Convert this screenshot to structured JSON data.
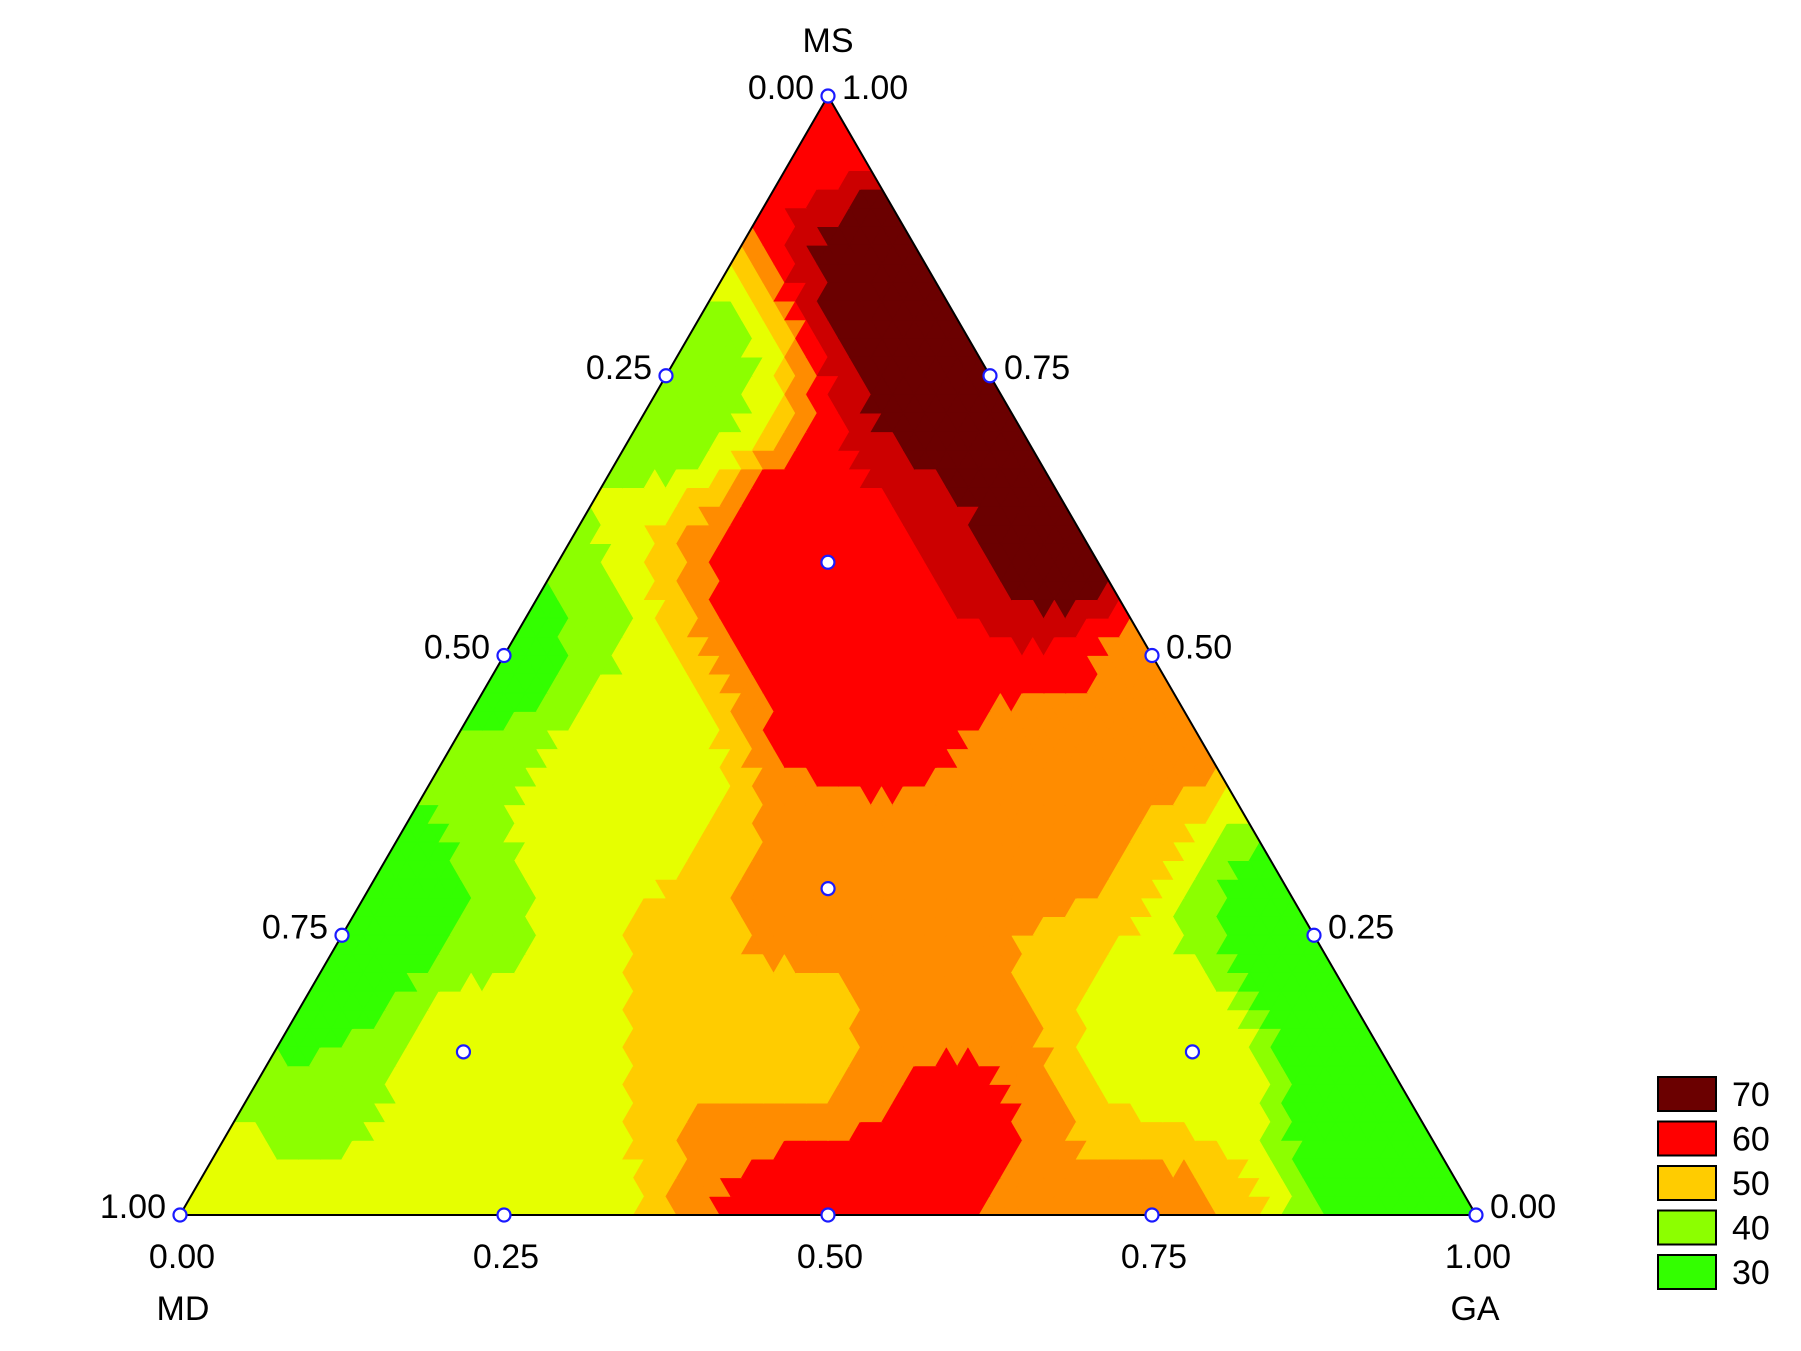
{
  "chart_data": {
    "type": "heatmap",
    "subtype": "ternary-contour",
    "components": {
      "top": "MS",
      "bottom_left": "MD",
      "bottom_right": "GA"
    },
    "left_edge_ticks": [
      "0.00",
      "0.25",
      "0.50",
      "0.75",
      "1.00"
    ],
    "right_edge_ticks": [
      "1.00",
      "0.75",
      "0.50",
      "0.25",
      "0.00"
    ],
    "bottom_edge_ticks": [
      "0.00",
      "0.25",
      "0.50",
      "0.75",
      "1.00"
    ],
    "design_points": [
      {
        "MS": 1.0,
        "GA": 0.0
      },
      {
        "MS": 0.75,
        "GA": 0.0
      },
      {
        "MS": 0.75,
        "GA": 0.25
      },
      {
        "MS": 0.5,
        "GA": 0.0
      },
      {
        "MS": 0.5,
        "GA": 0.5
      },
      {
        "MS": 0.25,
        "GA": 0.0
      },
      {
        "MS": 0.25,
        "GA": 0.75
      },
      {
        "MS": 0.0,
        "GA": 0.0
      },
      {
        "MS": 0.0,
        "GA": 0.25
      },
      {
        "MS": 0.0,
        "GA": 0.5
      },
      {
        "MS": 0.0,
        "GA": 0.75
      },
      {
        "MS": 0.0,
        "GA": 1.0
      },
      {
        "MS": 0.5833,
        "GA": 0.2083
      },
      {
        "MS": 0.2917,
        "GA": 0.3542
      },
      {
        "MS": 0.1458,
        "GA": 0.1458
      },
      {
        "MS": 0.1458,
        "GA": 0.7083
      }
    ],
    "contour_approximation": {
      "description": "response level by composition (fractions of MS and GA, MD = 1 - MS - GA)",
      "samples": [
        {
          "MS": 1.0,
          "GA": 0.0,
          "value": 60
        },
        {
          "MS": 0.75,
          "GA": 0.0,
          "value": 40
        },
        {
          "MS": 0.75,
          "GA": 0.25,
          "value": 72
        },
        {
          "MS": 0.5,
          "GA": 0.0,
          "value": 37
        },
        {
          "MS": 0.5,
          "GA": 0.5,
          "value": 57
        },
        {
          "MS": 0.25,
          "GA": 0.0,
          "value": 33
        },
        {
          "MS": 0.25,
          "GA": 0.75,
          "value": 35
        },
        {
          "MS": 0.0,
          "GA": 0.0,
          "value": 43
        },
        {
          "MS": 0.0,
          "GA": 0.25,
          "value": 44
        },
        {
          "MS": 0.0,
          "GA": 0.5,
          "value": 60
        },
        {
          "MS": 0.0,
          "GA": 0.75,
          "value": 53
        },
        {
          "MS": 0.0,
          "GA": 1.0,
          "value": 35
        },
        {
          "MS": 0.5833,
          "GA": 0.2083,
          "value": 62
        },
        {
          "MS": 0.2917,
          "GA": 0.3542,
          "value": 53
        },
        {
          "MS": 0.1458,
          "GA": 0.1458,
          "value": 43
        },
        {
          "MS": 0.1458,
          "GA": 0.7083,
          "value": 45
        },
        {
          "MS": 0.85,
          "GA": 0.15,
          "value": 72
        },
        {
          "MS": 0.6,
          "GA": 0.4,
          "value": 70
        },
        {
          "MS": 0.45,
          "GA": 0.3,
          "value": 60
        },
        {
          "MS": 0.35,
          "GA": 0.5,
          "value": 53
        },
        {
          "MS": 0.15,
          "GA": 0.4,
          "value": 52
        },
        {
          "MS": 0.08,
          "GA": 0.55,
          "value": 58
        },
        {
          "MS": 0.4,
          "GA": 0.15,
          "value": 45
        },
        {
          "MS": 0.2,
          "GA": 0.8,
          "value": 30
        },
        {
          "MS": 0.1,
          "GA": 0.9,
          "value": 28
        }
      ]
    },
    "legend": {
      "placement": "bottom-right",
      "entries": [
        {
          "label": "70",
          "color": "#6b0000"
        },
        {
          "label": "60",
          "color": "#ff0000"
        },
        {
          "label": "50",
          "color": "#ffcc00"
        },
        {
          "label": "40",
          "color": "#8cff00"
        },
        {
          "label": "30",
          "color": "#33ff00"
        }
      ]
    },
    "colorscale": [
      {
        "value": 25,
        "color": "#006400"
      },
      {
        "value": 30,
        "color": "#33ff00"
      },
      {
        "value": 40,
        "color": "#8cff00"
      },
      {
        "value": 45,
        "color": "#e6ff00"
      },
      {
        "value": 50,
        "color": "#ffcc00"
      },
      {
        "value": 55,
        "color": "#ff8c00"
      },
      {
        "value": 60,
        "color": "#ff0000"
      },
      {
        "value": 65,
        "color": "#cc0000"
      },
      {
        "value": 70,
        "color": "#6b0000"
      },
      {
        "value": 75,
        "color": "#4a0000"
      }
    ]
  }
}
